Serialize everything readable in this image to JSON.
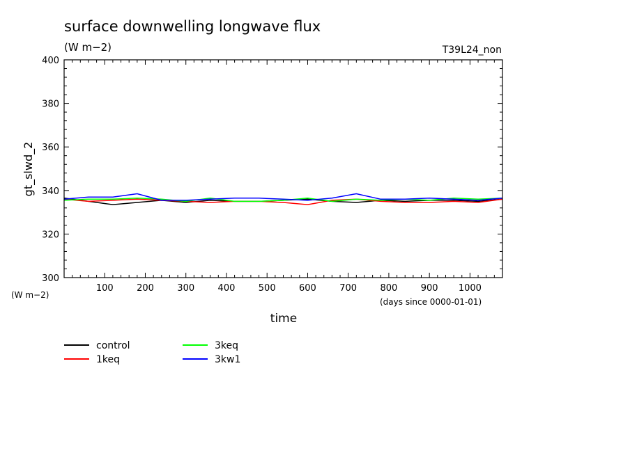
{
  "chart_data": {
    "type": "line",
    "title": "surface downwelling longwave flux",
    "subtitle": "(W m−2)",
    "run_label": "T39L24_non",
    "xlabel": "time",
    "xunits": "(days since 0000-01-01)",
    "ylabel": "gt_slwd_2",
    "yunits": "(W m−2)",
    "xlim": [
      0,
      1080
    ],
    "ylim": [
      300,
      400
    ],
    "xticks": [
      100,
      200,
      300,
      400,
      500,
      600,
      700,
      800,
      900,
      1000
    ],
    "xtick_labels": [
      "100",
      "200",
      "300",
      "400",
      "500",
      "600",
      "700",
      "800",
      "900",
      "1000"
    ],
    "yticks": [
      300,
      320,
      340,
      360,
      380,
      400
    ],
    "ytick_labels": [
      "300",
      "320",
      "340",
      "360",
      "380",
      "400"
    ],
    "grid": false,
    "legend_position": "bottom-left",
    "x": [
      0,
      60,
      120,
      180,
      240,
      300,
      360,
      420,
      480,
      540,
      600,
      660,
      720,
      780,
      840,
      900,
      960,
      1020,
      1080
    ],
    "series": [
      {
        "name": "control",
        "color": "#000000",
        "values": [
          336.5,
          335.0,
          333.5,
          334.5,
          335.5,
          334.5,
          335.5,
          335.0,
          335.0,
          335.5,
          336.0,
          335.0,
          334.5,
          335.5,
          335.0,
          335.5,
          335.5,
          335.0,
          336.0
        ]
      },
      {
        "name": "1keq",
        "color": "#ff0000",
        "values": [
          336.0,
          335.0,
          335.5,
          336.0,
          335.5,
          335.0,
          334.5,
          335.0,
          335.0,
          334.5,
          333.5,
          335.5,
          336.0,
          335.0,
          334.5,
          334.5,
          335.0,
          334.5,
          336.0
        ]
      },
      {
        "name": "3keq",
        "color": "#00ff00",
        "values": [
          335.5,
          336.0,
          336.0,
          336.5,
          336.0,
          335.0,
          336.5,
          335.0,
          335.0,
          335.5,
          336.5,
          335.0,
          336.0,
          335.5,
          336.0,
          335.5,
          336.5,
          336.0,
          336.5
        ]
      },
      {
        "name": "3kw1",
        "color": "#0000ff",
        "values": [
          336.0,
          337.0,
          337.0,
          338.5,
          335.5,
          335.5,
          336.0,
          336.5,
          336.5,
          336.0,
          335.5,
          336.5,
          338.5,
          336.0,
          336.0,
          336.5,
          336.0,
          335.5,
          336.5
        ]
      }
    ]
  }
}
